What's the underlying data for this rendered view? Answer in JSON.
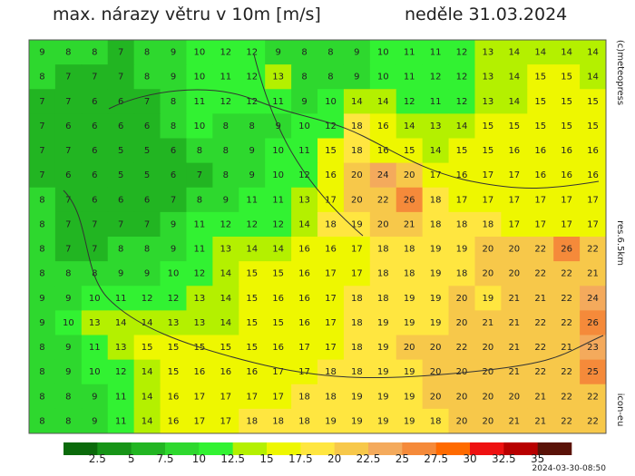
{
  "header": {
    "title": "max. nárazy větru v 10m [m/s]",
    "date": "neděle 31.03.2024"
  },
  "side_labels": {
    "copyright": "(c)meteopress",
    "resolution": "res.6.5km",
    "model": "icon-eu"
  },
  "timestamp": "2024-03-30-08:50",
  "legend": {
    "colors": [
      "#0b6a0b",
      "#179417",
      "#22b522",
      "#2ed82e",
      "#32f232",
      "#b4f000",
      "#eef700",
      "#ffe640",
      "#f7c84a",
      "#f4aa5c",
      "#f58a3a",
      "#ff6a00",
      "#ee1111",
      "#b80000",
      "#5a1208"
    ],
    "labels": [
      2.5,
      5,
      7.5,
      10,
      12.5,
      15,
      17.5,
      20,
      22.5,
      25,
      27.5,
      30,
      32.5,
      35
    ]
  },
  "map": {
    "grid": [
      [
        9,
        8,
        8,
        7,
        8,
        9,
        10,
        12,
        12,
        9,
        8,
        8,
        9,
        10,
        11,
        11,
        12,
        13,
        14,
        14,
        14,
        14
      ],
      [
        8,
        7,
        7,
        7,
        8,
        9,
        10,
        11,
        12,
        13,
        8,
        8,
        9,
        10,
        11,
        12,
        12,
        13,
        14,
        15,
        15,
        14
      ],
      [
        7,
        7,
        6,
        6,
        7,
        8,
        11,
        12,
        12,
        11,
        9,
        10,
        14,
        14,
        12,
        11,
        12,
        13,
        14,
        15,
        15,
        15
      ],
      [
        7,
        6,
        6,
        6,
        6,
        8,
        10,
        8,
        8,
        9,
        10,
        12,
        18,
        16,
        14,
        13,
        14,
        15,
        15,
        15,
        15,
        15
      ],
      [
        7,
        7,
        6,
        5,
        5,
        6,
        8,
        8,
        9,
        10,
        11,
        15,
        18,
        16,
        15,
        14,
        15,
        15,
        16,
        16,
        16,
        16
      ],
      [
        7,
        6,
        6,
        5,
        5,
        6,
        7,
        8,
        9,
        10,
        12,
        16,
        20,
        24,
        20,
        17,
        16,
        17,
        17,
        16,
        16,
        16
      ],
      [
        8,
        7,
        6,
        6,
        6,
        7,
        8,
        9,
        11,
        11,
        13,
        17,
        20,
        22,
        26,
        18,
        17,
        17,
        17,
        17,
        17,
        17
      ],
      [
        8,
        7,
        7,
        7,
        7,
        9,
        11,
        12,
        12,
        12,
        14,
        18,
        19,
        20,
        21,
        18,
        18,
        18,
        17,
        17,
        17,
        17
      ],
      [
        8,
        7,
        7,
        8,
        8,
        9,
        11,
        13,
        14,
        14,
        16,
        16,
        17,
        18,
        18,
        19,
        19,
        20,
        20,
        22,
        26,
        22
      ],
      [
        8,
        8,
        8,
        9,
        9,
        10,
        12,
        14,
        15,
        15,
        16,
        17,
        17,
        18,
        18,
        19,
        18,
        20,
        20,
        22,
        22,
        21
      ],
      [
        9,
        9,
        10,
        11,
        12,
        12,
        13,
        14,
        15,
        16,
        16,
        17,
        18,
        18,
        19,
        19,
        20,
        19,
        21,
        21,
        22,
        24
      ],
      [
        9,
        10,
        13,
        14,
        14,
        13,
        13,
        14,
        15,
        15,
        16,
        17,
        18,
        19,
        19,
        19,
        20,
        21,
        21,
        22,
        22,
        26
      ],
      [
        8,
        9,
        11,
        13,
        15,
        15,
        15,
        15,
        15,
        16,
        17,
        17,
        18,
        19,
        20,
        20,
        22,
        20,
        21,
        22,
        21,
        23
      ],
      [
        8,
        9,
        10,
        12,
        14,
        15,
        16,
        16,
        16,
        17,
        17,
        18,
        18,
        19,
        19,
        20,
        20,
        20,
        21,
        22,
        22,
        25
      ],
      [
        8,
        8,
        9,
        11,
        14,
        16,
        17,
        17,
        17,
        17,
        18,
        18,
        19,
        19,
        19,
        20,
        20,
        20,
        20,
        21,
        22,
        22
      ],
      [
        8,
        8,
        9,
        11,
        14,
        16,
        17,
        17,
        18,
        18,
        18,
        19,
        19,
        19,
        19,
        18,
        20,
        20,
        21,
        21,
        22,
        22
      ]
    ]
  }
}
